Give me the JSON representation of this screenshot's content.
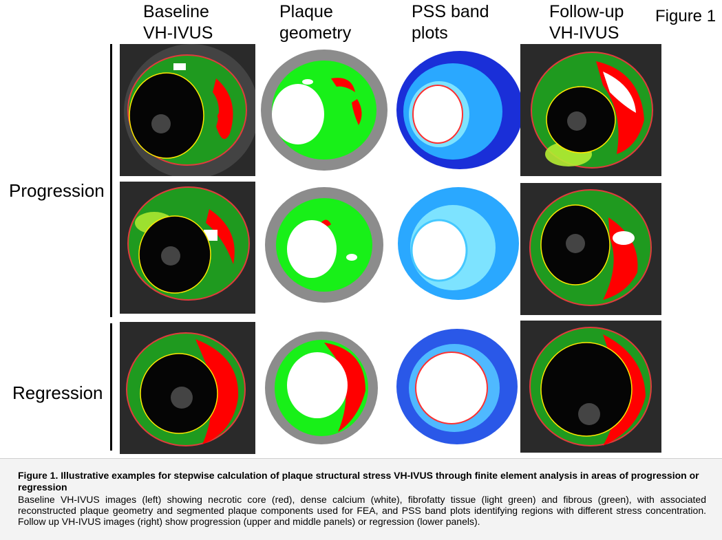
{
  "figure_label": "Figure 1",
  "columns": [
    {
      "line1": "Baseline",
      "line2": "VH-IVUS"
    },
    {
      "line1": "Plaque",
      "line2": "geometry"
    },
    {
      "line1": "PSS band",
      "line2": "plots"
    },
    {
      "line1": "Follow-up",
      "line2": "VH-IVUS"
    }
  ],
  "rows": {
    "progression": "Progression",
    "regression": "Regression"
  },
  "caption": {
    "title": "Figure 1. Illustrative examples for stepwise calculation of plaque structural stress VH-IVUS through finite element analysis in areas of progression or regression",
    "body": "Baseline VH-IVUS images (left) showing necrotic core (red), dense calcium (white), fibrofatty tissue (light green) and fibrous (green), with associated reconstructed plaque geometry and segmented plaque components used for FEA, and PSS band plots identifying regions with different stress concentration. Follow up VH-IVUS images (right) show progression (upper and middle panels) or regression (lower panels)."
  },
  "colors": {
    "necrotic_core": "#ff0000",
    "dense_calcium": "#ffffff",
    "fibrofatty": "#b4ec32",
    "fibrous": "#1f9a1f",
    "geometry_green": "#18f018",
    "vessel_wall": "#8c8c8c",
    "stress_low": "#2aa8ff",
    "stress_high": "#1a2fd8"
  }
}
